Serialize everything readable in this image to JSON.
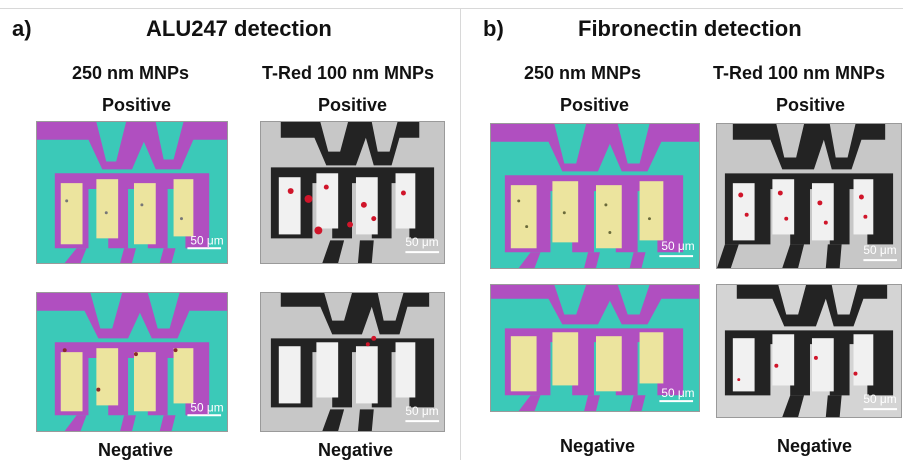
{
  "panel_a": {
    "letter": "a)",
    "title": "ALU247 detection",
    "col_left": "250 nm MNPs",
    "col_right": "T-Red 100 nm MNPs",
    "row_top_left": "Positive",
    "row_top_right": "Positive",
    "row_bottom_left": "Negative",
    "row_bottom_right": "Negative"
  },
  "panel_b": {
    "letter": "b)",
    "title": "Fibronectin detection",
    "col_left": "250 nm MNPs",
    "col_right": "T-Red 100 nm MNPs",
    "row_top_left": "Positive",
    "row_top_right": "Positive",
    "row_bottom_left": "Negative",
    "row_bottom_right": "Negative"
  },
  "scale_label": "50 μm",
  "colors": {
    "cyan_bg": "#3bc9b8",
    "magenta_trace": "#b04fc0",
    "yellow_sensor": "#ece49e",
    "gray_bg": "#c7c7c7",
    "dark_trace": "#232323",
    "red_particles": "#d0152a"
  }
}
